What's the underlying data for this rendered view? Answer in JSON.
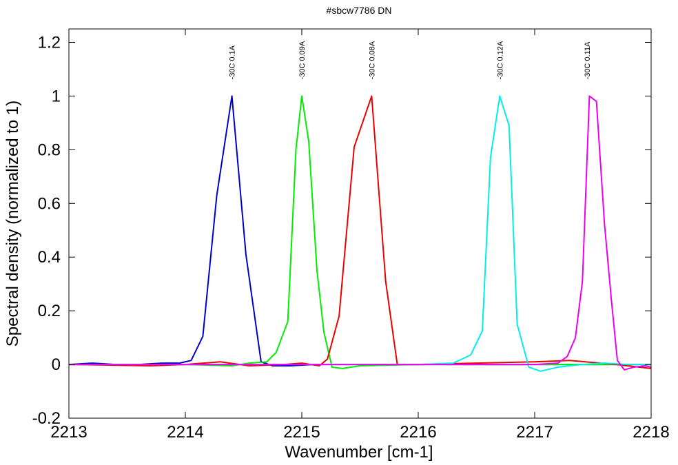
{
  "chart_data": {
    "type": "line",
    "title": "#sbcw7786 DN",
    "xlabel": "Wavenumber [cm-1]",
    "ylabel": "Spectral density (normalized to 1)",
    "xlim": [
      2213,
      2218
    ],
    "ylim": [
      -0.2,
      1.25
    ],
    "x_ticks": [
      2213,
      2214,
      2215,
      2216,
      2217,
      2218
    ],
    "x_tick_labels": [
      "2213",
      "2214",
      "2215",
      "2216",
      "2217",
      "2218"
    ],
    "y_ticks": [
      -0.2,
      0,
      0.2,
      0.4,
      0.6,
      0.8,
      1,
      1.2
    ],
    "y_tick_labels": [
      "-0.2",
      "0",
      "0.2",
      "0.4",
      "0.6",
      "0.8",
      "1",
      "1.2"
    ],
    "grid": false,
    "legend": "none",
    "annotations": [
      {
        "text": "-30C 0.1A",
        "x": 2214.4
      },
      {
        "text": "-30C 0.09A",
        "x": 2215.0
      },
      {
        "text": "-30C 0.08A",
        "x": 2215.6
      },
      {
        "text": "-30C 0.12A",
        "x": 2216.7
      },
      {
        "text": "-30C 0.11A",
        "x": 2217.45
      }
    ],
    "series": [
      {
        "color": "#0000cc",
        "x": [
          2213.0,
          2213.2,
          2213.4,
          2213.6,
          2213.8,
          2213.95,
          2214.05,
          2214.15,
          2214.27,
          2214.4,
          2214.52,
          2214.65,
          2214.75,
          2214.9,
          2215.1,
          2215.5,
          2216.0,
          2216.5,
          2217.0,
          2217.5,
          2218.0
        ],
        "y": [
          0.0,
          0.005,
          0.0,
          0.0,
          0.005,
          0.005,
          0.015,
          0.105,
          0.63,
          1.0,
          0.41,
          0.01,
          -0.005,
          -0.005,
          0.0,
          0.0,
          0.0,
          0.0,
          0.0,
          0.0,
          0.0
        ]
      },
      {
        "color": "#00ee00",
        "x": [
          2213.0,
          2213.5,
          2214.0,
          2214.4,
          2214.55,
          2214.7,
          2214.78,
          2214.88,
          2214.95,
          2215.0,
          2215.06,
          2215.13,
          2215.19,
          2215.26,
          2215.35,
          2215.5,
          2216.0,
          2216.5,
          2217.0,
          2217.5,
          2218.0
        ],
        "y": [
          0.0,
          0.0,
          0.0,
          -0.005,
          0.005,
          0.01,
          0.045,
          0.16,
          0.8,
          1.0,
          0.83,
          0.35,
          0.12,
          -0.01,
          -0.015,
          -0.005,
          0.0,
          0.0,
          0.0,
          0.0,
          0.0
        ]
      },
      {
        "color": "#ee0000",
        "x": [
          2213.0,
          2213.7,
          2214.0,
          2214.3,
          2214.55,
          2214.85,
          2215.0,
          2215.15,
          2215.22,
          2215.32,
          2215.45,
          2215.6,
          2215.72,
          2215.82,
          2216.0,
          2216.5,
          2217.0,
          2217.3,
          2217.7,
          2218.0
        ],
        "y": [
          0.0,
          -0.005,
          0.0,
          0.01,
          -0.005,
          0.0,
          0.005,
          -0.005,
          0.02,
          0.18,
          0.81,
          1.0,
          0.31,
          0.0,
          0.0,
          0.005,
          0.01,
          0.015,
          0.0,
          -0.015
        ]
      },
      {
        "color": "#00eeee",
        "x": [
          2213.0,
          2213.5,
          2214.0,
          2214.5,
          2215.0,
          2215.5,
          2216.0,
          2216.3,
          2216.45,
          2216.55,
          2216.62,
          2216.7,
          2216.78,
          2216.85,
          2216.95,
          2217.05,
          2217.2,
          2217.4,
          2217.6,
          2217.8,
          2218.0
        ],
        "y": [
          0.0,
          0.0,
          0.0,
          0.0,
          0.0,
          0.0,
          0.0,
          0.005,
          0.035,
          0.125,
          0.77,
          1.0,
          0.89,
          0.15,
          -0.01,
          -0.025,
          -0.01,
          0.0,
          0.005,
          0.0,
          0.0
        ]
      },
      {
        "color": "#ee00ee",
        "x": [
          2213.0,
          2214.0,
          2215.0,
          2216.0,
          2216.6,
          2217.0,
          2217.2,
          2217.28,
          2217.35,
          2217.41,
          2217.47,
          2217.53,
          2217.6,
          2217.66,
          2217.71,
          2217.77,
          2217.85,
          2217.95,
          2218.0
        ],
        "y": [
          0.0,
          0.0,
          0.0,
          0.0,
          0.0,
          0.0,
          0.005,
          0.03,
          0.1,
          0.31,
          1.0,
          0.98,
          0.52,
          0.235,
          0.015,
          -0.02,
          -0.01,
          -0.005,
          -0.01
        ]
      }
    ]
  }
}
